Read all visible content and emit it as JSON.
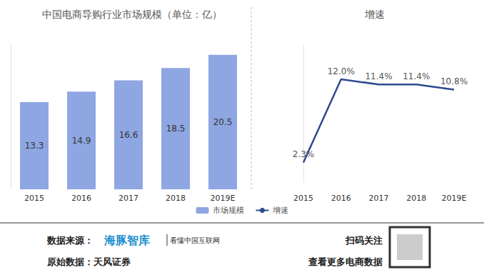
{
  "chart_data": [
    {
      "type": "bar",
      "title": "中国电商导购行业市场规模（单位：亿）",
      "categories": [
        "2015",
        "2016",
        "2017",
        "2018",
        "2019E"
      ],
      "series": [
        {
          "name": "市场规模",
          "color": "#8ea6e2",
          "values": [
            13.3,
            14.9,
            16.6,
            18.5,
            20.5
          ]
        }
      ],
      "ylim": [
        0,
        22
      ],
      "yticks": [],
      "grid": false,
      "data_labels": true,
      "tick_labels": "x",
      "legend": "bottom"
    },
    {
      "type": "line",
      "title": "增速",
      "categories": [
        "2015",
        "2016",
        "2017",
        "2018",
        "2019E"
      ],
      "series": [
        {
          "name": "增速",
          "color": "#2e4a8e",
          "values": [
            2.3,
            12.0,
            11.4,
            11.4,
            10.8
          ],
          "value_labels": [
            "2.3%",
            "12.0%",
            "11.4%",
            "11.4%",
            "10.8%"
          ]
        }
      ],
      "ylim": [
        0,
        16
      ],
      "yticks": [],
      "grid": false,
      "data_labels": true,
      "tick_labels": "x",
      "legend": "bottom"
    }
  ],
  "footer": {
    "source_label": "数据来源：",
    "brand": "海豚智库",
    "slogan": "看懂中国互联网",
    "original": "原始数据：天风证券",
    "follow": "扫码关注",
    "more": "查看更多电商数据"
  }
}
